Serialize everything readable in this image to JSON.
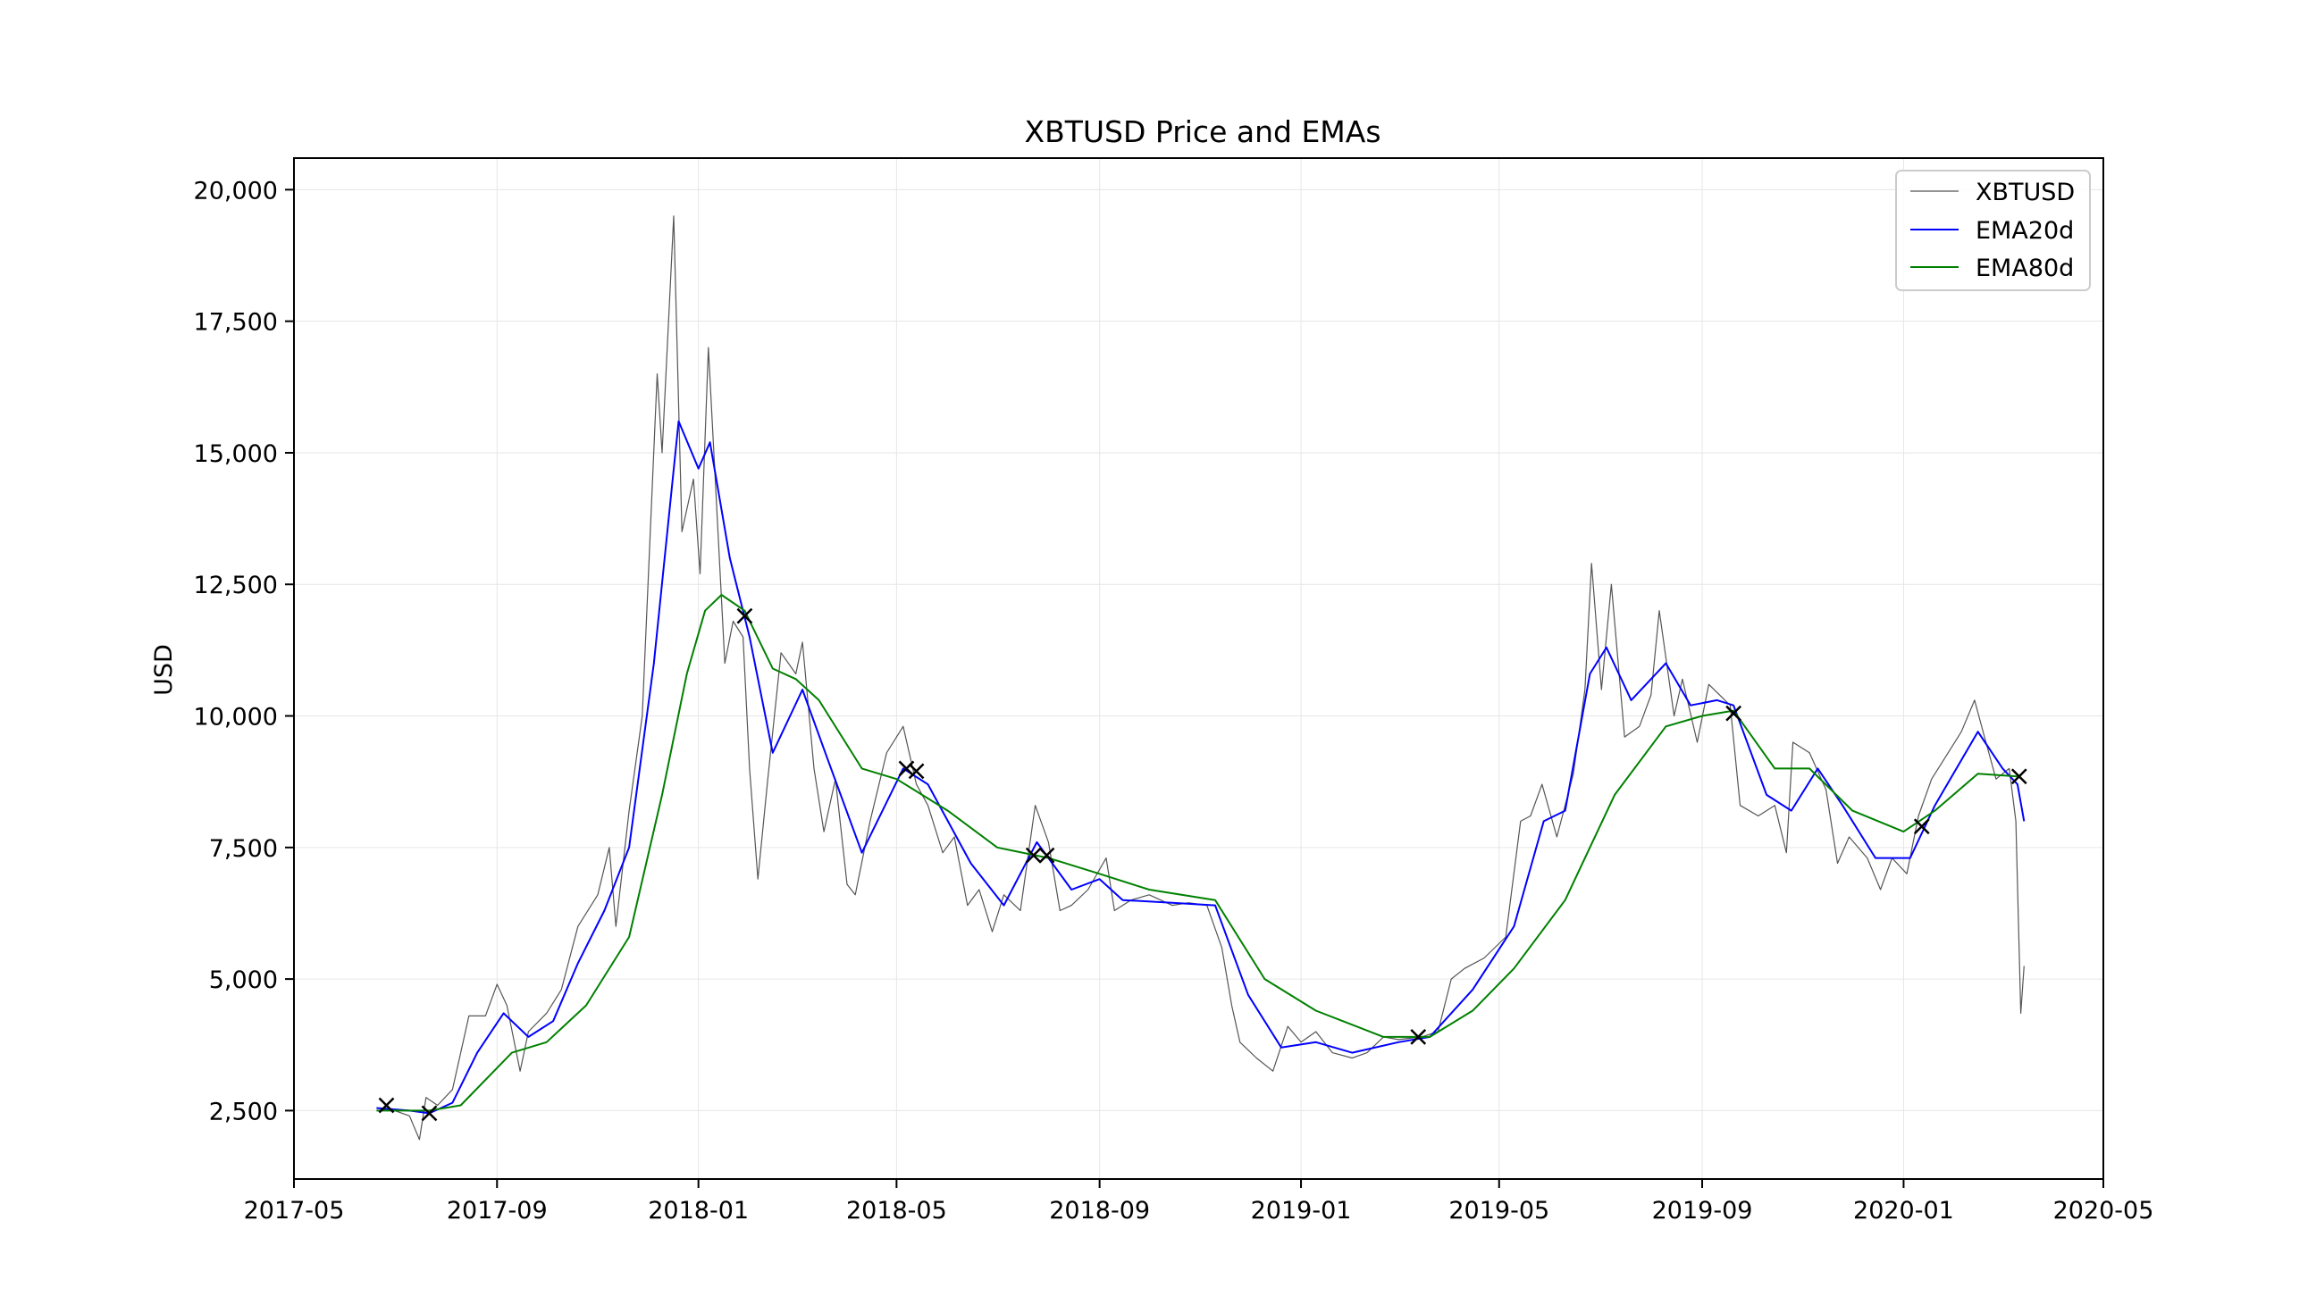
{
  "chart_data": {
    "type": "line",
    "title": "XBTUSD Price and EMAs",
    "xlabel": "",
    "ylabel": "USD",
    "xlim": [
      "2017-05-01",
      "2020-05-01"
    ],
    "ylim": [
      1200,
      20600
    ],
    "x_ticks": [
      "2017-05",
      "2017-09",
      "2018-01",
      "2018-05",
      "2018-09",
      "2019-01",
      "2019-05",
      "2019-09",
      "2020-01",
      "2020-05"
    ],
    "y_ticks": [
      2500,
      5000,
      7500,
      10000,
      12500,
      15000,
      17500,
      20000
    ],
    "y_tick_labels": [
      "2,500",
      "5,000",
      "7,500",
      "10,000",
      "12,500",
      "15,000",
      "17,500",
      "20,000"
    ],
    "grid": true,
    "legend": "top-right",
    "series": [
      {
        "name": "XBTUSD",
        "color": "#555555",
        "points": [
          [
            "2017-06-20",
            2550
          ],
          [
            "2017-07-01",
            2500
          ],
          [
            "2017-07-10",
            2400
          ],
          [
            "2017-07-16",
            1950
          ],
          [
            "2017-07-20",
            2750
          ],
          [
            "2017-07-27",
            2600
          ],
          [
            "2017-08-05",
            2900
          ],
          [
            "2017-08-15",
            4300
          ],
          [
            "2017-08-25",
            4300
          ],
          [
            "2017-09-01",
            4900
          ],
          [
            "2017-09-07",
            4500
          ],
          [
            "2017-09-15",
            3250
          ],
          [
            "2017-09-20",
            4000
          ],
          [
            "2017-10-01",
            4350
          ],
          [
            "2017-10-10",
            4800
          ],
          [
            "2017-10-20",
            6000
          ],
          [
            "2017-11-01",
            6600
          ],
          [
            "2017-11-08",
            7500
          ],
          [
            "2017-11-12",
            6000
          ],
          [
            "2017-11-20",
            8200
          ],
          [
            "2017-11-28",
            10000
          ],
          [
            "2017-12-07",
            16500
          ],
          [
            "2017-12-10",
            15000
          ],
          [
            "2017-12-17",
            19500
          ],
          [
            "2017-12-22",
            13500
          ],
          [
            "2017-12-29",
            14500
          ],
          [
            "2018-01-02",
            12700
          ],
          [
            "2018-01-07",
            17000
          ],
          [
            "2018-01-12",
            14000
          ],
          [
            "2018-01-17",
            11000
          ],
          [
            "2018-01-22",
            11800
          ],
          [
            "2018-01-28",
            11500
          ],
          [
            "2018-02-01",
            9000
          ],
          [
            "2018-02-06",
            6900
          ],
          [
            "2018-02-12",
            8800
          ],
          [
            "2018-02-20",
            11200
          ],
          [
            "2018-03-01",
            10800
          ],
          [
            "2018-03-05",
            11400
          ],
          [
            "2018-03-12",
            9000
          ],
          [
            "2018-03-18",
            7800
          ],
          [
            "2018-03-25",
            8800
          ],
          [
            "2018-04-01",
            6800
          ],
          [
            "2018-04-06",
            6600
          ],
          [
            "2018-04-15",
            8000
          ],
          [
            "2018-04-25",
            9300
          ],
          [
            "2018-05-05",
            9800
          ],
          [
            "2018-05-13",
            8700
          ],
          [
            "2018-05-20",
            8300
          ],
          [
            "2018-05-29",
            7400
          ],
          [
            "2018-06-05",
            7700
          ],
          [
            "2018-06-13",
            6400
          ],
          [
            "2018-06-20",
            6700
          ],
          [
            "2018-06-28",
            5900
          ],
          [
            "2018-07-05",
            6600
          ],
          [
            "2018-07-15",
            6300
          ],
          [
            "2018-07-24",
            8300
          ],
          [
            "2018-08-01",
            7600
          ],
          [
            "2018-08-08",
            6300
          ],
          [
            "2018-08-15",
            6400
          ],
          [
            "2018-08-25",
            6700
          ],
          [
            "2018-09-05",
            7300
          ],
          [
            "2018-09-10",
            6300
          ],
          [
            "2018-09-20",
            6500
          ],
          [
            "2018-10-01",
            6600
          ],
          [
            "2018-10-15",
            6400
          ],
          [
            "2018-10-25",
            6450
          ],
          [
            "2018-11-05",
            6400
          ],
          [
            "2018-11-14",
            5600
          ],
          [
            "2018-11-20",
            4500
          ],
          [
            "2018-11-25",
            3800
          ],
          [
            "2018-12-05",
            3500
          ],
          [
            "2018-12-15",
            3250
          ],
          [
            "2018-12-24",
            4100
          ],
          [
            "2019-01-01",
            3800
          ],
          [
            "2019-01-10",
            4000
          ],
          [
            "2019-01-20",
            3600
          ],
          [
            "2019-02-01",
            3500
          ],
          [
            "2019-02-10",
            3600
          ],
          [
            "2019-02-20",
            3900
          ],
          [
            "2019-03-01",
            3850
          ],
          [
            "2019-03-15",
            3900
          ],
          [
            "2019-03-25",
            4000
          ],
          [
            "2019-04-02",
            5000
          ],
          [
            "2019-04-10",
            5200
          ],
          [
            "2019-04-22",
            5400
          ],
          [
            "2019-05-05",
            5800
          ],
          [
            "2019-05-14",
            8000
          ],
          [
            "2019-05-20",
            8100
          ],
          [
            "2019-05-27",
            8700
          ],
          [
            "2019-06-05",
            7700
          ],
          [
            "2019-06-15",
            8900
          ],
          [
            "2019-06-22",
            10500
          ],
          [
            "2019-06-26",
            12900
          ],
          [
            "2019-07-02",
            10500
          ],
          [
            "2019-07-08",
            12500
          ],
          [
            "2019-07-16",
            9600
          ],
          [
            "2019-07-25",
            9800
          ],
          [
            "2019-08-01",
            10400
          ],
          [
            "2019-08-06",
            12000
          ],
          [
            "2019-08-15",
            10000
          ],
          [
            "2019-08-20",
            10700
          ],
          [
            "2019-08-29",
            9500
          ],
          [
            "2019-09-05",
            10600
          ],
          [
            "2019-09-18",
            10200
          ],
          [
            "2019-09-24",
            8300
          ],
          [
            "2019-10-05",
            8100
          ],
          [
            "2019-10-15",
            8300
          ],
          [
            "2019-10-22",
            7400
          ],
          [
            "2019-10-26",
            9500
          ],
          [
            "2019-11-05",
            9300
          ],
          [
            "2019-11-15",
            8600
          ],
          [
            "2019-11-22",
            7200
          ],
          [
            "2019-11-29",
            7700
          ],
          [
            "2019-12-10",
            7300
          ],
          [
            "2019-12-18",
            6700
          ],
          [
            "2019-12-25",
            7300
          ],
          [
            "2020-01-03",
            7000
          ],
          [
            "2020-01-10",
            8100
          ],
          [
            "2020-01-18",
            8800
          ],
          [
            "2020-01-28",
            9300
          ],
          [
            "2020-02-05",
            9700
          ],
          [
            "2020-02-13",
            10300
          ],
          [
            "2020-02-19",
            9600
          ],
          [
            "2020-02-26",
            8800
          ],
          [
            "2020-03-05",
            9000
          ],
          [
            "2020-03-09",
            8000
          ],
          [
            "2020-03-12",
            4350
          ],
          [
            "2020-03-14",
            5250
          ]
        ]
      },
      {
        "name": "EMA20d",
        "color": "#0000ff",
        "points": [
          [
            "2017-06-20",
            2550
          ],
          [
            "2017-07-10",
            2500
          ],
          [
            "2017-07-22",
            2450
          ],
          [
            "2017-08-05",
            2650
          ],
          [
            "2017-08-20",
            3600
          ],
          [
            "2017-09-05",
            4350
          ],
          [
            "2017-09-20",
            3900
          ],
          [
            "2017-10-05",
            4200
          ],
          [
            "2017-10-20",
            5300
          ],
          [
            "2017-11-05",
            6300
          ],
          [
            "2017-11-20",
            7500
          ],
          [
            "2017-12-05",
            11000
          ],
          [
            "2017-12-20",
            15600
          ],
          [
            "2018-01-01",
            14700
          ],
          [
            "2018-01-08",
            15200
          ],
          [
            "2018-01-20",
            13000
          ],
          [
            "2018-02-01",
            11500
          ],
          [
            "2018-02-15",
            9300
          ],
          [
            "2018-03-05",
            10500
          ],
          [
            "2018-03-20",
            9200
          ],
          [
            "2018-04-10",
            7400
          ],
          [
            "2018-05-05",
            9000
          ],
          [
            "2018-05-20",
            8700
          ],
          [
            "2018-06-15",
            7200
          ],
          [
            "2018-07-05",
            6400
          ],
          [
            "2018-07-25",
            7600
          ],
          [
            "2018-08-15",
            6700
          ],
          [
            "2018-09-01",
            6900
          ],
          [
            "2018-09-15",
            6500
          ],
          [
            "2018-10-15",
            6450
          ],
          [
            "2018-11-10",
            6400
          ],
          [
            "2018-11-30",
            4700
          ],
          [
            "2018-12-20",
            3700
          ],
          [
            "2019-01-10",
            3800
          ],
          [
            "2019-02-01",
            3600
          ],
          [
            "2019-03-01",
            3800
          ],
          [
            "2019-03-20",
            3900
          ],
          [
            "2019-04-15",
            4800
          ],
          [
            "2019-05-10",
            6000
          ],
          [
            "2019-05-28",
            8000
          ],
          [
            "2019-06-10",
            8200
          ],
          [
            "2019-06-25",
            10800
          ],
          [
            "2019-07-05",
            11300
          ],
          [
            "2019-07-20",
            10300
          ],
          [
            "2019-08-10",
            11000
          ],
          [
            "2019-08-25",
            10200
          ],
          [
            "2019-09-10",
            10300
          ],
          [
            "2019-09-20",
            10200
          ],
          [
            "2019-10-10",
            8500
          ],
          [
            "2019-10-25",
            8200
          ],
          [
            "2019-11-10",
            9000
          ],
          [
            "2019-11-25",
            8300
          ],
          [
            "2019-12-15",
            7300
          ],
          [
            "2020-01-05",
            7300
          ],
          [
            "2020-01-20",
            8300
          ],
          [
            "2020-02-15",
            9700
          ],
          [
            "2020-03-01",
            9000
          ],
          [
            "2020-03-10",
            8700
          ],
          [
            "2020-03-14",
            8000
          ]
        ]
      },
      {
        "name": "EMA80d",
        "color": "#008000",
        "points": [
          [
            "2017-06-20",
            2500
          ],
          [
            "2017-07-22",
            2500
          ],
          [
            "2017-08-10",
            2600
          ],
          [
            "2017-09-10",
            3600
          ],
          [
            "2017-10-01",
            3800
          ],
          [
            "2017-10-25",
            4500
          ],
          [
            "2017-11-20",
            5800
          ],
          [
            "2017-12-10",
            8500
          ],
          [
            "2017-12-25",
            10800
          ],
          [
            "2018-01-05",
            12000
          ],
          [
            "2018-01-15",
            12300
          ],
          [
            "2018-01-29",
            12000
          ],
          [
            "2018-02-15",
            10900
          ],
          [
            "2018-03-01",
            10700
          ],
          [
            "2018-03-15",
            10300
          ],
          [
            "2018-04-10",
            9000
          ],
          [
            "2018-05-01",
            8800
          ],
          [
            "2018-06-01",
            8200
          ],
          [
            "2018-07-01",
            7500
          ],
          [
            "2018-08-01",
            7300
          ],
          [
            "2018-09-01",
            7000
          ],
          [
            "2018-10-01",
            6700
          ],
          [
            "2018-11-10",
            6500
          ],
          [
            "2018-12-10",
            5000
          ],
          [
            "2019-01-10",
            4400
          ],
          [
            "2019-02-20",
            3900
          ],
          [
            "2019-03-20",
            3900
          ],
          [
            "2019-04-15",
            4400
          ],
          [
            "2019-05-10",
            5200
          ],
          [
            "2019-06-10",
            6500
          ],
          [
            "2019-07-10",
            8500
          ],
          [
            "2019-08-10",
            9800
          ],
          [
            "2019-09-01",
            10000
          ],
          [
            "2019-09-20",
            10100
          ],
          [
            "2019-10-15",
            9000
          ],
          [
            "2019-11-05",
            9000
          ],
          [
            "2019-12-01",
            8200
          ],
          [
            "2020-01-01",
            7800
          ],
          [
            "2020-01-20",
            8200
          ],
          [
            "2020-02-15",
            8900
          ],
          [
            "2020-03-10",
            8850
          ]
        ]
      }
    ],
    "crossovers": [
      [
        "2017-06-26",
        2600
      ],
      [
        "2017-07-22",
        2450
      ],
      [
        "2018-01-29",
        11900
      ],
      [
        "2018-05-07",
        9000
      ],
      [
        "2018-05-13",
        8950
      ],
      [
        "2018-07-23",
        7350
      ],
      [
        "2018-07-31",
        7350
      ],
      [
        "2019-03-13",
        3900
      ],
      [
        "2019-09-20",
        10050
      ],
      [
        "2020-01-12",
        7900
      ],
      [
        "2020-03-11",
        8850
      ]
    ]
  }
}
